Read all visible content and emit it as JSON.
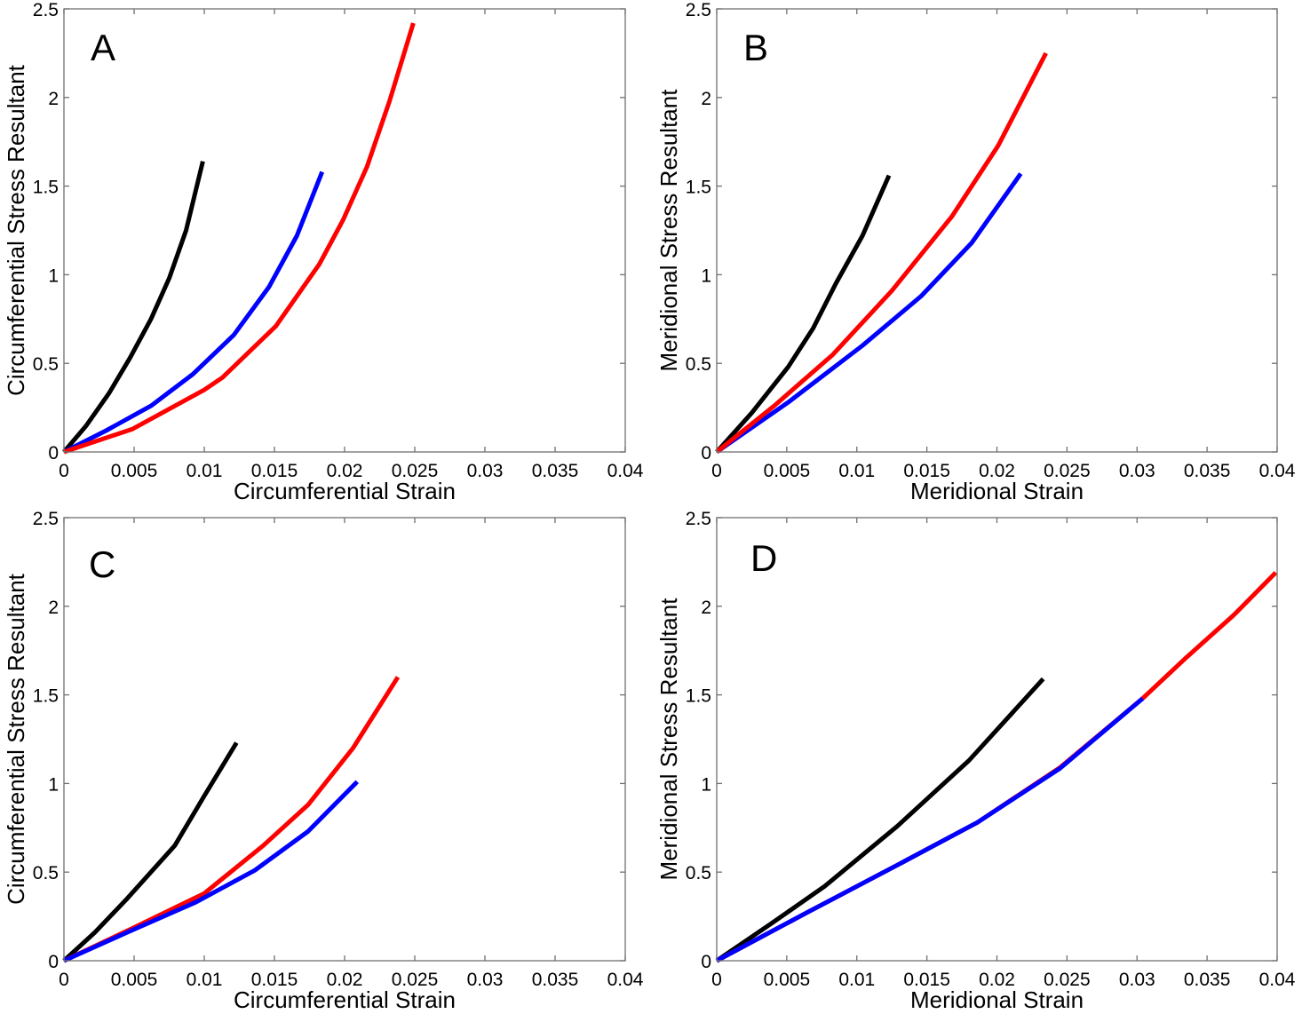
{
  "colors": {
    "black_series": "#000000",
    "blue_series": "#0000ff",
    "red_series": "#ff0000",
    "axis": "#707070"
  },
  "chart_data": [
    {
      "type": "line",
      "panel_label": "A",
      "title": "",
      "xlabel": "Circumferential Strain",
      "ylabel": "Circumferential Stress Resultant",
      "xlim": [
        0,
        0.04
      ],
      "ylim": [
        0,
        2.5
      ],
      "xticks": [
        0,
        0.005,
        0.01,
        0.015,
        0.02,
        0.025,
        0.03,
        0.035,
        0.04
      ],
      "xtick_labels": [
        "0",
        "0.005",
        "0.01",
        "0.015",
        "0.02",
        "0.025",
        "0.03",
        "0.035",
        "0.04"
      ],
      "yticks": [
        0,
        0.5,
        1,
        1.5,
        2,
        2.5
      ],
      "ytick_labels": [
        "0",
        "0.5",
        "1",
        "1.5",
        "2",
        "2.5"
      ],
      "grid": false,
      "legend": "none",
      "series": [
        {
          "name": "black",
          "color": "#000000",
          "x": [
            0,
            0.0016,
            0.0032,
            0.0047,
            0.0062,
            0.0075,
            0.0087,
            0.0099
          ],
          "y": [
            0,
            0.15,
            0.33,
            0.53,
            0.75,
            0.98,
            1.25,
            1.64
          ]
        },
        {
          "name": "blue",
          "color": "#0000ff",
          "x": [
            0,
            0.003,
            0.0062,
            0.0092,
            0.0121,
            0.0146,
            0.0166,
            0.0184
          ],
          "y": [
            0,
            0.12,
            0.26,
            0.44,
            0.66,
            0.93,
            1.22,
            1.58
          ]
        },
        {
          "name": "red",
          "color": "#ff0000",
          "x": [
            0,
            0.0049,
            0.01,
            0.0113,
            0.0151,
            0.0182,
            0.0199,
            0.0216,
            0.0232,
            0.0249
          ],
          "y": [
            0,
            0.13,
            0.35,
            0.42,
            0.71,
            1.06,
            1.31,
            1.61,
            1.98,
            2.42
          ]
        }
      ]
    },
    {
      "type": "line",
      "panel_label": "B",
      "title": "",
      "xlabel": "Meridional Strain",
      "ylabel": "Meridional Stress Resultant",
      "xlim": [
        0,
        0.04
      ],
      "ylim": [
        0,
        2.5
      ],
      "xticks": [
        0,
        0.005,
        0.01,
        0.015,
        0.02,
        0.025,
        0.03,
        0.035,
        0.04
      ],
      "xtick_labels": [
        "0",
        "0.005",
        "0.01",
        "0.015",
        "0.02",
        "0.025",
        "0.03",
        "0.035",
        "0.04"
      ],
      "yticks": [
        0,
        0.5,
        1,
        1.5,
        2,
        2.5
      ],
      "ytick_labels": [
        "0",
        "0.5",
        "1",
        "1.5",
        "2",
        "2.5"
      ],
      "grid": false,
      "legend": "none",
      "series": [
        {
          "name": "black",
          "color": "#000000",
          "x": [
            0,
            0.0025,
            0.0051,
            0.0069,
            0.0085,
            0.0104,
            0.0123
          ],
          "y": [
            0,
            0.22,
            0.48,
            0.7,
            0.95,
            1.22,
            1.56
          ]
        },
        {
          "name": "blue",
          "color": "#0000ff",
          "x": [
            0,
            0.0051,
            0.0104,
            0.0146,
            0.0182,
            0.0217
          ],
          "y": [
            0,
            0.28,
            0.6,
            0.88,
            1.18,
            1.57
          ]
        },
        {
          "name": "red",
          "color": "#ff0000",
          "x": [
            0,
            0.0041,
            0.0083,
            0.0125,
            0.0168,
            0.0201,
            0.0235
          ],
          "y": [
            0,
            0.26,
            0.55,
            0.91,
            1.33,
            1.73,
            2.25
          ]
        }
      ]
    },
    {
      "type": "line",
      "panel_label": "C",
      "title": "",
      "xlabel": "Circumferential Strain",
      "ylabel": "Circumferential Stress Resultant",
      "xlim": [
        0,
        0.04
      ],
      "ylim": [
        0,
        2.5
      ],
      "xticks": [
        0,
        0.005,
        0.01,
        0.015,
        0.02,
        0.025,
        0.03,
        0.035,
        0.04
      ],
      "xtick_labels": [
        "0",
        "0.005",
        "0.01",
        "0.015",
        "0.02",
        "0.025",
        "0.03",
        "0.035",
        "0.04"
      ],
      "yticks": [
        0,
        0.5,
        1,
        1.5,
        2,
        2.5
      ],
      "ytick_labels": [
        "0",
        "0.5",
        "1",
        "1.5",
        "2",
        "2.5"
      ],
      "grid": false,
      "legend": "none",
      "series": [
        {
          "name": "black",
          "color": "#000000",
          "x": [
            0,
            0.0022,
            0.0045,
            0.0079,
            0.01,
            0.0123
          ],
          "y": [
            0,
            0.16,
            0.35,
            0.65,
            0.93,
            1.23
          ]
        },
        {
          "name": "red",
          "color": "#ff0000",
          "x": [
            0,
            0.0048,
            0.01,
            0.0142,
            0.0174,
            0.0206,
            0.0238
          ],
          "y": [
            0,
            0.18,
            0.38,
            0.65,
            0.88,
            1.2,
            1.6
          ]
        },
        {
          "name": "blue",
          "color": "#0000ff",
          "x": [
            0,
            0.0045,
            0.0094,
            0.0136,
            0.0174,
            0.0209
          ],
          "y": [
            0,
            0.16,
            0.33,
            0.51,
            0.73,
            1.01
          ]
        }
      ]
    },
    {
      "type": "line",
      "panel_label": "D",
      "title": "",
      "xlabel": "Meridional Strain",
      "ylabel": "Meridional Stress Resultant",
      "xlim": [
        0,
        0.04
      ],
      "ylim": [
        0,
        2.5
      ],
      "xticks": [
        0,
        0.005,
        0.01,
        0.015,
        0.02,
        0.025,
        0.03,
        0.035,
        0.04
      ],
      "xtick_labels": [
        "0",
        "0.005",
        "0.01",
        "0.015",
        "0.02",
        "0.025",
        "0.03",
        "0.035",
        "0.04"
      ],
      "yticks": [
        0,
        0.5,
        1,
        1.5,
        2,
        2.5
      ],
      "ytick_labels": [
        "0",
        "0.5",
        "1",
        "1.5",
        "2",
        "2.5"
      ],
      "grid": false,
      "legend": "none",
      "series": [
        {
          "name": "black",
          "color": "#000000",
          "x": [
            0,
            0.0039,
            0.0077,
            0.0129,
            0.018,
            0.0233
          ],
          "y": [
            0,
            0.21,
            0.42,
            0.76,
            1.13,
            1.59
          ]
        },
        {
          "name": "red",
          "color": "#ff0000",
          "x": [
            0,
            0.0064,
            0.0129,
            0.0186,
            0.0245,
            0.0304,
            0.0335,
            0.0369,
            0.0399
          ],
          "y": [
            0,
            0.27,
            0.54,
            0.78,
            1.09,
            1.48,
            1.71,
            1.95,
            2.19
          ]
        },
        {
          "name": "blue",
          "color": "#0000ff",
          "x": [
            0,
            0.0064,
            0.0129,
            0.0186,
            0.0245,
            0.0304
          ],
          "y": [
            0,
            0.27,
            0.54,
            0.78,
            1.085,
            1.48
          ]
        }
      ]
    }
  ]
}
